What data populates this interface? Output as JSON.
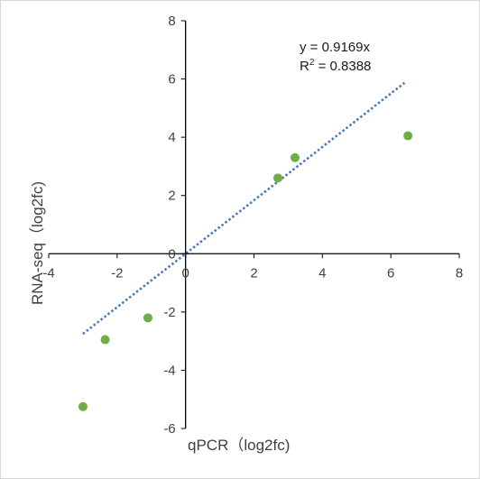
{
  "chart_data": {
    "type": "scatter",
    "title": "",
    "xlabel": "qPCR（log2fc)",
    "ylabel": "RNA-seq（log2fc)",
    "xlim": [
      -4,
      8
    ],
    "ylim": [
      -6,
      8
    ],
    "xticks": [
      -4,
      -2,
      0,
      2,
      4,
      6,
      8
    ],
    "yticks": [
      -6,
      -4,
      -2,
      0,
      2,
      4,
      6,
      8
    ],
    "xtick_labels": [
      "-4",
      "-2",
      "0",
      "2",
      "4",
      "6",
      "8"
    ],
    "ytick_labels": [
      "-6",
      "-4",
      "-2",
      "0",
      "2",
      "4",
      "6",
      "8"
    ],
    "grid": false,
    "series": [
      {
        "points": [
          {
            "x": -3.0,
            "y": -5.25
          },
          {
            "x": -2.35,
            "y": -2.95
          },
          {
            "x": -1.1,
            "y": -2.2
          },
          {
            "x": 2.7,
            "y": 2.6
          },
          {
            "x": 3.2,
            "y": 3.3
          },
          {
            "x": 6.5,
            "y": 4.05
          }
        ],
        "color": "#70ad47"
      }
    ],
    "trendline": {
      "slope": 0.9169,
      "intercept": 0,
      "x_range": [
        -3.0,
        6.4
      ],
      "color": "#4a7ab8",
      "style": "dotted"
    },
    "annotations": {
      "equation": "y = 0.9169x",
      "r2_prefix": "R",
      "r2_sup": "2",
      "r2_value": " = 0.8388"
    }
  }
}
